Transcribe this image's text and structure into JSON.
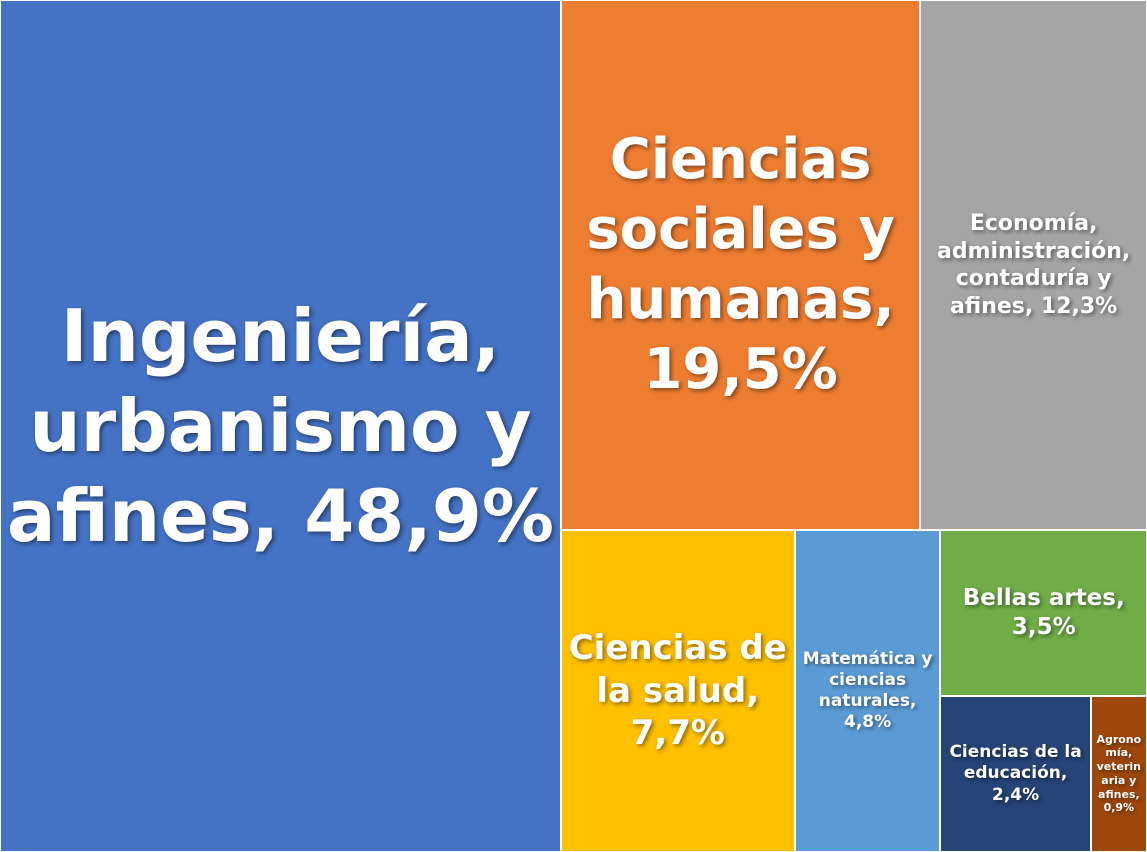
{
  "chart_data": {
    "type": "treemap",
    "values": [
      48.9,
      19.5,
      12.3,
      7.7,
      4.8,
      3.5,
      2.4,
      0.9
    ],
    "value_labels": [
      "Ingeniería, urbanismo y afines, 48,9%",
      "Ciencias sociales y humanas, 19,5%",
      "Economía, administración, contaduría y afines, 12,3%",
      "Ciencias de la salud, 7,7%",
      "Matemática y ciencias naturales, 4,8%",
      "Bellas artes, 3,5%",
      "Ciencias de la educación, 2,4%",
      "Agronomía, veterinaria y afines, 0,9%"
    ],
    "colors": [
      "#4472c4",
      "#ed7d31",
      "#a5a5a5",
      "#ffc000",
      "#5b9bd5",
      "#70ad47",
      "#264478",
      "#9e480e"
    ]
  }
}
